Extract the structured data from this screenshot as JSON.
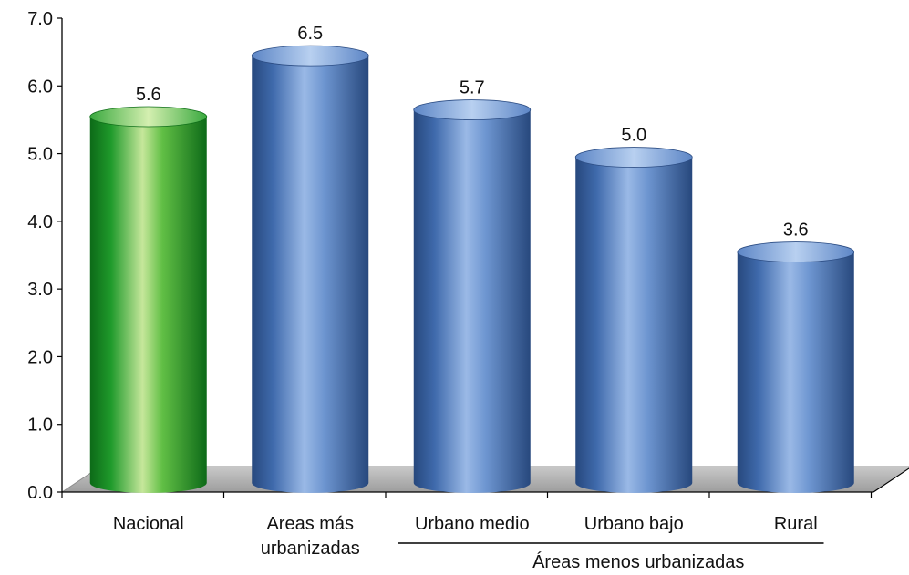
{
  "chart_data": {
    "type": "bar",
    "categories": [
      "Nacional",
      "Areas más urbanizadas",
      "Urbano medio",
      "Urbano bajo",
      "Rural"
    ],
    "category_lines": [
      [
        "Nacional"
      ],
      [
        "Areas más",
        "urbanizadas"
      ],
      [
        "Urbano medio"
      ],
      [
        "Urbano bajo"
      ],
      [
        "Rural"
      ]
    ],
    "values": [
      5.6,
      6.5,
      5.7,
      5.0,
      3.6
    ],
    "value_labels": [
      "5.6",
      "6.5",
      "5.7",
      "5.0",
      "3.6"
    ],
    "yticks": [
      "0.0",
      "1.0",
      "2.0",
      "3.0",
      "4.0",
      "5.0",
      "6.0",
      "7.0"
    ],
    "ylim": [
      0,
      7
    ],
    "group_label": "Áreas menos urbanizadas",
    "group_span": [
      "Urbano medio",
      "Rural"
    ],
    "grid": false,
    "bar_style": "3d-cylinder",
    "colors": {
      "highlight": "#22a22f",
      "bars": "#4f7dbf"
    }
  }
}
